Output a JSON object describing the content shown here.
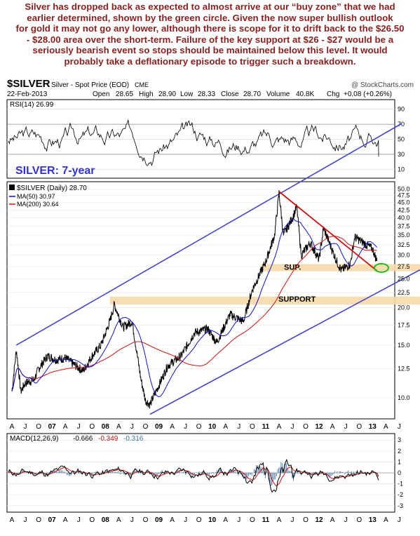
{
  "commentary": {
    "lines": [
      "Silver has dropped back as expected to almost arrive at our “buy zone” that we had",
      "earlier determined, shown by the green circle. Given the now super bullish outlook",
      "for gold it may not go any lower, although there is scope for it to drift back to the $26.50",
      "- $28.00 area over the short-term. Failure of the key support at $26 - $27 would be a",
      "seriously bearish event so stops should be maintained below this level. It would",
      "probably take a deflationary episode to trigger such a breakdown."
    ]
  },
  "header": {
    "symbol": "$SILVER",
    "description": "Silver - Spot Price (EOD)",
    "exchange": "CME",
    "watermark": "@ StockCharts.com",
    "date": "22-Feb-2013",
    "open_label": "Open",
    "open": "28.65",
    "high_label": "High",
    "high": "28.90",
    "low_label": "Low",
    "low": "28.33",
    "close_label": "Close",
    "close": "28.70",
    "volume_label": "Volume",
    "volume": "40.8K",
    "chg_label": "Chg",
    "chg": "+0.08 (+0.26%)"
  },
  "rsi_panel": {
    "legend": "RSI(14) 26.99",
    "annotation": "SILVER: 7-year",
    "ticks": [
      "90",
      "70",
      "50",
      "30",
      "10"
    ]
  },
  "price_panel": {
    "legend_main": "$SILVER (Daily) 28.70",
    "legend_ma50": "MA(50) 30.97",
    "legend_ma200": "MA(200) 30.64",
    "ticks": [
      "50.0",
      "47.5",
      "45.0",
      "42.5",
      "40.0",
      "37.5",
      "35.0",
      "32.5",
      "30.0",
      "27.5",
      "25.0",
      "22.5",
      "20.0",
      "17.5",
      "15.0",
      "12.5",
      "10.0"
    ],
    "support_upper_label": "SUP.",
    "support_lower_label": "SUPPORT",
    "colors": {
      "price": "#000000",
      "ma50": "#1010cc",
      "ma200": "#cc1111",
      "channel": "#4444cc",
      "support_band": "#f6d9a8",
      "trend": "#cc1111",
      "buy_zone": "#22bb22"
    }
  },
  "macd_panel": {
    "legend_prefix": "MACD(12,26,9)",
    "macd": "-0.666",
    "signal": "-0.349",
    "histogram": "-0.316",
    "ticks": [
      "3",
      "2",
      "1",
      "0",
      "-1",
      "-2",
      "-3"
    ]
  },
  "x_axis": {
    "labels": [
      "A",
      "J",
      "O",
      "07",
      "A",
      "J",
      "O",
      "08",
      "A",
      "J",
      "O",
      "09",
      "A",
      "J",
      "O",
      "10",
      "A",
      "J",
      "O",
      "11",
      "A",
      "J",
      "O",
      "12",
      "A",
      "J",
      "O",
      "13",
      "A",
      "J"
    ]
  },
  "chart_data": {
    "type": "line",
    "title": "$SILVER Silver - Spot Price (EOD)",
    "x_range": [
      "2006-04",
      "2013-06"
    ],
    "y_scale": "log",
    "ylim": [
      8.5,
      52
    ],
    "price_series": {
      "name": "$SILVER (Daily)",
      "x": [
        "2006-04",
        "2006-05",
        "2006-06",
        "2006-07",
        "2006-09",
        "2006-10",
        "2006-12",
        "2007-02",
        "2007-04",
        "2007-06",
        "2007-08",
        "2007-10",
        "2007-12",
        "2008-02",
        "2008-03",
        "2008-05",
        "2008-07",
        "2008-09",
        "2008-10",
        "2008-11",
        "2009-01",
        "2009-03",
        "2009-06",
        "2009-09",
        "2009-12",
        "2010-02",
        "2010-05",
        "2010-08",
        "2010-10",
        "2011-01",
        "2011-03",
        "2011-04",
        "2011-05",
        "2011-07",
        "2011-08",
        "2011-09",
        "2011-11",
        "2012-01",
        "2012-02",
        "2012-05",
        "2012-06",
        "2012-08",
        "2012-09",
        "2012-11",
        "2013-01",
        "2013-02"
      ],
      "values": [
        10.5,
        14.5,
        10.5,
        11.2,
        11.5,
        12.5,
        13.8,
        13.4,
        13.6,
        12.9,
        12.3,
        13.8,
        15.0,
        18.0,
        20.5,
        17.2,
        18.0,
        11.5,
        9.8,
        9.5,
        11.0,
        12.8,
        13.8,
        16.5,
        17.0,
        15.3,
        19.0,
        18.0,
        23.0,
        28.5,
        35.0,
        48.5,
        35.0,
        40.0,
        43.5,
        30.0,
        33.0,
        29.0,
        37.0,
        28.5,
        26.7,
        28.0,
        34.5,
        33.0,
        31.5,
        28.7
      ]
    },
    "ma50": {
      "name": "MA(50)",
      "last": 30.97
    },
    "ma200": {
      "name": "MA(200)",
      "last": 30.64
    },
    "rsi_last": 26.99,
    "macd_last": {
      "macd": -0.666,
      "signal": -0.349,
      "histogram": -0.316
    },
    "support_zones": [
      [
        26.5,
        28.0
      ],
      [
        20.5,
        21.8
      ]
    ]
  }
}
